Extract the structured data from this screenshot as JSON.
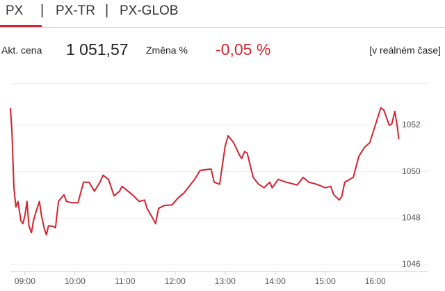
{
  "tabs": [
    "PX",
    "PX-TR",
    "PX-GLOB"
  ],
  "quote": {
    "price_label": "Akt. cena",
    "price": "1 051,57",
    "change_label": "Změna %",
    "change": "-0,05 %",
    "realtime": "[v reálném čase]"
  },
  "chart_data": {
    "type": "line",
    "color": "#d3222e",
    "grid": true,
    "xlim": [
      8.71,
      16.49
    ],
    "xticks": [
      {
        "value": 9,
        "label": "09:00"
      },
      {
        "value": 10,
        "label": "10:00"
      },
      {
        "value": 11,
        "label": "11:00"
      },
      {
        "value": 12,
        "label": "12:00"
      },
      {
        "value": 13,
        "label": "13:00"
      },
      {
        "value": 14,
        "label": "14:00"
      },
      {
        "value": 15,
        "label": "15:00"
      },
      {
        "value": 16,
        "label": "16:00"
      }
    ],
    "ylim": [
      1045.7,
      1053.8
    ],
    "yticks": [
      1046,
      1048,
      1050,
      1052
    ],
    "x": [
      8.71,
      8.74,
      8.78,
      8.82,
      8.86,
      8.92,
      8.96,
      9.0,
      9.04,
      9.08,
      9.13,
      9.17,
      9.22,
      9.29,
      9.33,
      9.39,
      9.43,
      9.47,
      9.57,
      9.61,
      9.67,
      9.78,
      9.83,
      9.94,
      10.06,
      10.11,
      10.17,
      10.28,
      10.39,
      10.5,
      10.56,
      10.67,
      10.78,
      10.89,
      10.94,
      11.06,
      11.17,
      11.28,
      11.39,
      11.44,
      11.56,
      11.61,
      11.67,
      11.78,
      11.94,
      12.06,
      12.17,
      12.28,
      12.39,
      12.5,
      12.61,
      12.72,
      12.78,
      12.89,
      12.94,
      13.0,
      13.06,
      13.17,
      13.28,
      13.33,
      13.39,
      13.44,
      13.56,
      13.67,
      13.78,
      13.89,
      13.94,
      14.06,
      14.22,
      14.44,
      14.56,
      14.67,
      14.83,
      15.0,
      15.11,
      15.17,
      15.28,
      15.33,
      15.39,
      15.56,
      15.67,
      15.78,
      15.89,
      16.0,
      16.11,
      16.17,
      16.28,
      16.33,
      16.39,
      16.44,
      16.47
    ],
    "values": [
      1052.75,
      1051.7,
      1049.31,
      1048.48,
      1048.72,
      1047.88,
      1047.76,
      1048.12,
      1048.72,
      1047.67,
      1047.37,
      1047.88,
      1048.27,
      1048.72,
      1048.12,
      1047.52,
      1047.28,
      1047.67,
      1047.64,
      1047.58,
      1048.72,
      1049.01,
      1048.72,
      1048.66,
      1048.66,
      1049.07,
      1049.55,
      1049.55,
      1049.16,
      1049.55,
      1049.85,
      1049.67,
      1048.96,
      1049.16,
      1049.37,
      1049.16,
      1048.96,
      1048.72,
      1048.78,
      1048.42,
      1047.97,
      1047.76,
      1048.42,
      1048.54,
      1048.57,
      1048.87,
      1049.07,
      1049.37,
      1049.67,
      1050.06,
      1050.09,
      1050.12,
      1049.55,
      1049.46,
      1050.21,
      1051.1,
      1051.55,
      1051.25,
      1050.75,
      1050.57,
      1050.87,
      1050.81,
      1049.76,
      1049.46,
      1049.31,
      1049.55,
      1049.31,
      1049.67,
      1049.55,
      1049.43,
      1049.76,
      1049.55,
      1049.46,
      1049.31,
      1049.37,
      1049.01,
      1048.78,
      1048.93,
      1049.55,
      1049.76,
      1050.66,
      1051.04,
      1051.25,
      1052.0,
      1052.75,
      1052.66,
      1052.0,
      1052.06,
      1052.6,
      1051.94,
      1051.4
    ]
  }
}
